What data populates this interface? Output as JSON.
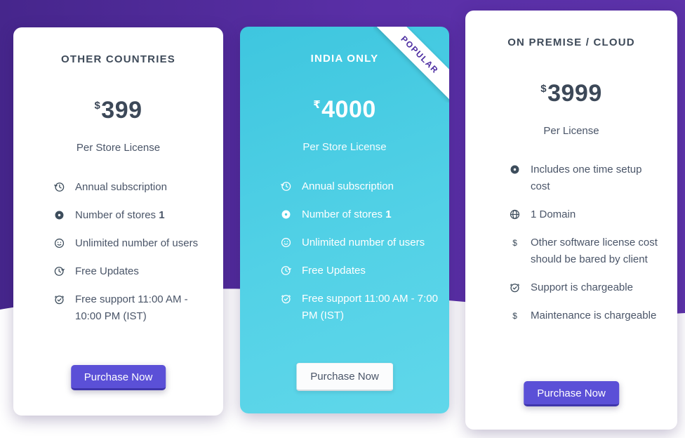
{
  "theme": {
    "background_purple_left": "#46268c",
    "background_purple_right": "#5d33aa",
    "card_cyan_top": "#3ec6df",
    "card_cyan_bottom": "#60d7ea",
    "button_purple": "#5b50d7",
    "ribbon_text_purple": "#4b2ba0",
    "heading_text": "#3e4a59",
    "body_text": "#4a5568"
  },
  "cards": [
    {
      "title": "OTHER COUNTRIES",
      "currency": "$",
      "amount": "399",
      "license_label": "Per Store License",
      "features": [
        {
          "icon": "history-icon",
          "text": "Annual subscription",
          "bold": ""
        },
        {
          "icon": "circle-dot-icon",
          "text": "Number of stores ",
          "bold": "1"
        },
        {
          "icon": "user-circle-icon",
          "text": "Unlimited number of users",
          "bold": ""
        },
        {
          "icon": "update-icon",
          "text": "Free Updates",
          "bold": ""
        },
        {
          "icon": "alarm-check-icon",
          "text": "Free support 11:00 AM - 10:00 PM (IST)",
          "bold": ""
        }
      ],
      "button_label": "Purchase Now"
    },
    {
      "badge": "POPULAR",
      "title": "INDIA ONLY",
      "currency": "₹",
      "amount": "4000",
      "license_label": "Per Store License",
      "features": [
        {
          "icon": "history-icon",
          "text": "Annual subscription",
          "bold": ""
        },
        {
          "icon": "circle-dot-icon",
          "text": "Number of stores ",
          "bold": "1"
        },
        {
          "icon": "user-circle-icon",
          "text": "Unlimited number of users",
          "bold": ""
        },
        {
          "icon": "update-icon",
          "text": "Free Updates",
          "bold": ""
        },
        {
          "icon": "alarm-check-icon",
          "text": "Free support 11:00 AM - 7:00 PM (IST)",
          "bold": ""
        }
      ],
      "button_label": "Purchase Now"
    },
    {
      "title": "ON PREMISE / CLOUD",
      "currency": "$",
      "amount": "3999",
      "license_label": "Per License",
      "features": [
        {
          "icon": "circle-dot-icon",
          "text": "Includes one time setup cost",
          "bold": ""
        },
        {
          "icon": "globe-icon",
          "text": "1 Domain",
          "bold": ""
        },
        {
          "icon": "dollar-icon",
          "text": "Other software license cost should be bared by client",
          "bold": ""
        },
        {
          "icon": "alarm-check-icon",
          "text": "Support is chargeable",
          "bold": ""
        },
        {
          "icon": "dollar-icon",
          "text": "Maintenance is chargeable",
          "bold": ""
        }
      ],
      "button_label": "Purchase Now"
    }
  ]
}
